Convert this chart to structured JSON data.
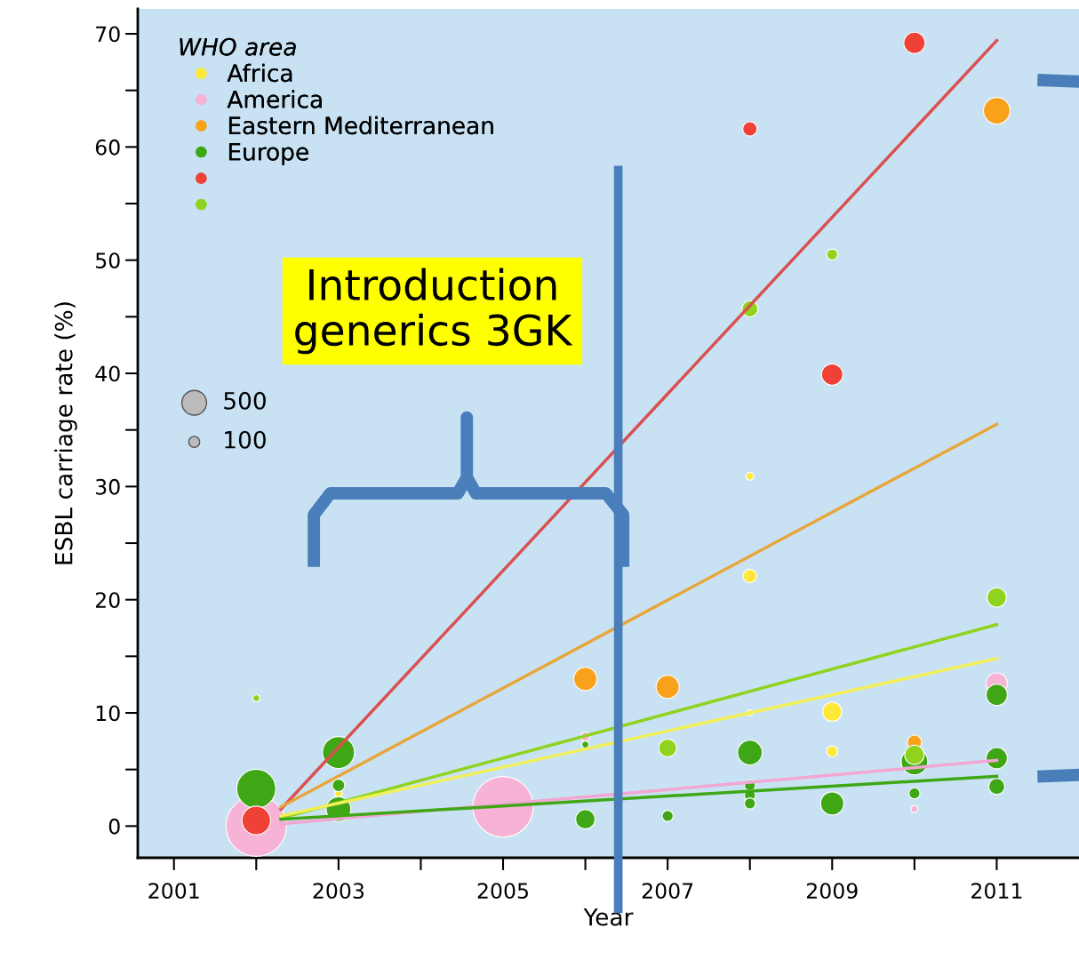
{
  "chart_data": {
    "type": "bubble",
    "xlabel": "Year",
    "ylabel": "ESBL carriage rate (%)",
    "legend_title": "WHO area",
    "xlim": [
      2000.56,
      2012.0
    ],
    "ylim": [
      -2.8,
      72.2
    ],
    "xticks": [
      2001,
      {
        "value": 2002,
        "label": null
      },
      2003,
      {
        "value": 2004,
        "label": null
      },
      2005,
      {
        "value": 2006,
        "label": null
      },
      2007,
      {
        "value": 2008,
        "label": null
      },
      2009,
      {
        "value": 2010,
        "label": null
      },
      2011
    ],
    "yticks": [
      0,
      {
        "value": 5,
        "label": null
      },
      10,
      {
        "value": 15,
        "label": null
      },
      20,
      {
        "value": 25,
        "label": null
      },
      30,
      {
        "value": 35,
        "label": null
      },
      40,
      {
        "value": 45,
        "label": null
      },
      50,
      {
        "value": 55,
        "label": null
      },
      60,
      {
        "value": 65,
        "label": null
      },
      70
    ],
    "size_legend": [
      500,
      100
    ],
    "marker": "circle",
    "legend": "top left",
    "grid": false,
    "series": [
      {
        "name": "Africa",
        "color": "#ffe838",
        "x": [
          2003,
          2008,
          2008,
          2008,
          2009,
          2009
        ],
        "values": [
          2.9,
          30.9,
          22.1,
          10.0,
          10.1,
          6.6
        ],
        "sizes": [
          50,
          50,
          150,
          30,
          300,
          100
        ]
      },
      {
        "name": "America",
        "color": "#f6b3d6",
        "x": [
          2002,
          2005,
          2006,
          2010,
          2011
        ],
        "values": [
          0,
          1.7,
          7.9,
          1.5,
          12.6
        ],
        "sizes": [
          3000,
          3000,
          70,
          40,
          370
        ]
      },
      {
        "name": "Eastern Mediterranean",
        "color": "#f9a11b",
        "x": [
          2006,
          2007,
          2010,
          2011
        ],
        "values": [
          13.0,
          12.3,
          7.4,
          63.2
        ],
        "sizes": [
          440,
          440,
          170,
          580
        ]
      },
      {
        "name": "Europe",
        "color": "#3fa716",
        "x": [
          2002,
          2003,
          2003,
          2003,
          2006,
          2006,
          2007,
          2008,
          2008,
          2008,
          2008,
          2009,
          2010,
          2010,
          2011,
          2011,
          2011
        ],
        "values": [
          3.3,
          6.5,
          3.6,
          1.5,
          0.6,
          7.2,
          0.9,
          6.5,
          3.6,
          2.7,
          2.0,
          2.0,
          5.7,
          2.9,
          11.6,
          6.0,
          3.5
        ],
        "sizes": [
          1250,
          840,
          130,
          500,
          310,
          40,
          100,
          500,
          100,
          100,
          100,
          440,
          580,
          100,
          370,
          370,
          210
        ]
      },
      {
        "color": "#ef4136",
        "x": [
          2002,
          2008,
          2009,
          2010
        ],
        "values": [
          0.5,
          61.6,
          39.9,
          69.2
        ],
        "sizes": [
          670,
          170,
          370,
          370
        ]
      },
      {
        "color": "#8fd31e",
        "x": [
          2002,
          2007,
          2008,
          2009,
          2010,
          2011
        ],
        "values": [
          11.3,
          6.9,
          45.7,
          50.5,
          6.3,
          20.2
        ],
        "sizes": [
          40,
          260,
          210,
          100,
          310,
          310
        ]
      },
      {
        "type": "line",
        "marker": "none",
        "color": "#d9504f",
        "x": [
          2002.3,
          2011
        ],
        "values": [
          1.5,
          69.4
        ]
      },
      {
        "type": "line",
        "marker": "none",
        "color": "#e8a63a",
        "x": [
          2002.3,
          2011
        ],
        "values": [
          1.7,
          35.5
        ]
      },
      {
        "type": "line",
        "marker": "none",
        "color": "#8fd31e",
        "x": [
          2002.3,
          2011
        ],
        "values": [
          0.7,
          17.8
        ]
      },
      {
        "type": "line",
        "marker": "none",
        "color": "#f2ef5a",
        "x": [
          2002.3,
          2011
        ],
        "values": [
          0.9,
          14.8
        ]
      },
      {
        "type": "line",
        "marker": "none",
        "color": "#f2a6d2",
        "x": [
          2002.3,
          2011
        ],
        "values": [
          0.2,
          5.8
        ]
      },
      {
        "type": "line",
        "marker": "none",
        "color": "#3fa716",
        "x": [
          2002.3,
          2011
        ],
        "values": [
          0.6,
          4.4
        ]
      }
    ],
    "ref_lines": [
      {
        "axis": "x",
        "value": 2006.4,
        "color": "#4a7ebb"
      }
    ],
    "annotations": [
      "Introduction\ngenerics 3GK"
    ]
  }
}
